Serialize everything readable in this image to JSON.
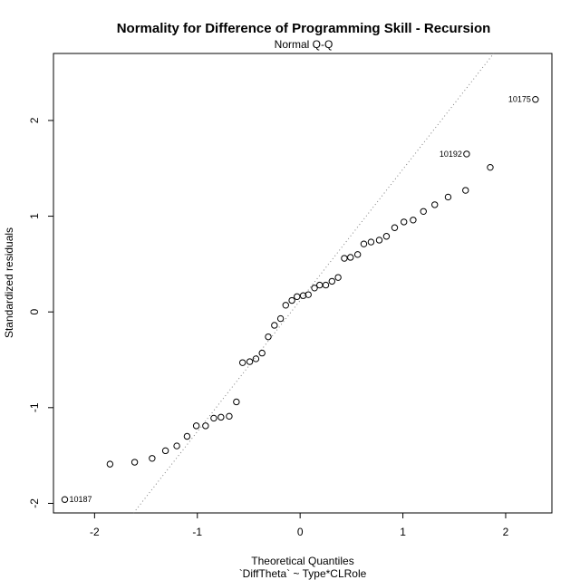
{
  "chart_data": {
    "type": "scatter",
    "title": "Normality for Difference of Programming Skill - Recursion",
    "subtitle": "Normal Q-Q",
    "xlabel": "Theoretical Quantiles",
    "xlabel2": "`DiffTheta` ~ Type*CLRole",
    "ylabel": "Standardized residuals",
    "xlim": [
      -2.4,
      2.45
    ],
    "ylim": [
      -2.1,
      2.7
    ],
    "xticks": [
      -2,
      -1,
      0,
      1,
      2
    ],
    "yticks": [
      -2,
      -1,
      0,
      1,
      2
    ],
    "grid": false,
    "reference_line": {
      "style": "dotted",
      "color": "#7f7f7f",
      "intercept": 0.12,
      "slope": 1.37
    },
    "points": [
      {
        "x": -2.29,
        "y": -1.96,
        "label": "10187"
      },
      {
        "x": -1.85,
        "y": -1.59
      },
      {
        "x": -1.61,
        "y": -1.57
      },
      {
        "x": -1.44,
        "y": -1.53
      },
      {
        "x": -1.31,
        "y": -1.45
      },
      {
        "x": -1.2,
        "y": -1.4
      },
      {
        "x": -1.1,
        "y": -1.3
      },
      {
        "x": -1.01,
        "y": -1.19
      },
      {
        "x": -0.92,
        "y": -1.19
      },
      {
        "x": -0.84,
        "y": -1.11
      },
      {
        "x": -0.77,
        "y": -1.1
      },
      {
        "x": -0.69,
        "y": -1.09
      },
      {
        "x": -0.62,
        "y": -0.94
      },
      {
        "x": -0.56,
        "y": -0.53
      },
      {
        "x": -0.49,
        "y": -0.52
      },
      {
        "x": -0.43,
        "y": -0.49
      },
      {
        "x": -0.37,
        "y": -0.43
      },
      {
        "x": -0.31,
        "y": -0.26
      },
      {
        "x": -0.25,
        "y": -0.14
      },
      {
        "x": -0.19,
        "y": -0.07
      },
      {
        "x": -0.14,
        "y": 0.07
      },
      {
        "x": -0.08,
        "y": 0.12
      },
      {
        "x": -0.03,
        "y": 0.16
      },
      {
        "x": 0.03,
        "y": 0.17
      },
      {
        "x": 0.08,
        "y": 0.18
      },
      {
        "x": 0.14,
        "y": 0.25
      },
      {
        "x": 0.19,
        "y": 0.28
      },
      {
        "x": 0.25,
        "y": 0.28
      },
      {
        "x": 0.31,
        "y": 0.32
      },
      {
        "x": 0.37,
        "y": 0.36
      },
      {
        "x": 0.43,
        "y": 0.56
      },
      {
        "x": 0.49,
        "y": 0.57
      },
      {
        "x": 0.56,
        "y": 0.6
      },
      {
        "x": 0.62,
        "y": 0.71
      },
      {
        "x": 0.69,
        "y": 0.73
      },
      {
        "x": 0.77,
        "y": 0.75
      },
      {
        "x": 0.84,
        "y": 0.79
      },
      {
        "x": 0.92,
        "y": 0.88
      },
      {
        "x": 1.01,
        "y": 0.94
      },
      {
        "x": 1.1,
        "y": 0.96
      },
      {
        "x": 1.2,
        "y": 1.05
      },
      {
        "x": 1.31,
        "y": 1.12
      },
      {
        "x": 1.44,
        "y": 1.2
      },
      {
        "x": 1.61,
        "y": 1.27
      },
      {
        "x": 1.85,
        "y": 1.51
      },
      {
        "x": 1.85,
        "y": 1.65,
        "label": "10192",
        "draw_x": 1.62
      },
      {
        "x": 2.29,
        "y": 2.22,
        "label": "10175"
      }
    ]
  }
}
